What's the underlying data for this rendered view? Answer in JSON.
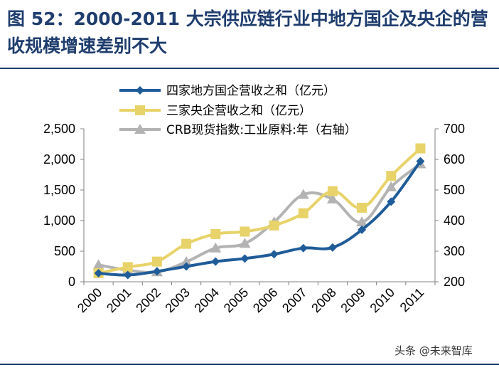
{
  "figure": {
    "title": "图 52：2000-2011 大宗供应链行业中地方国企及央企的营收规模增速差别不大",
    "watermark": "头条 @未来智库"
  },
  "chart_data": {
    "type": "line",
    "title": "",
    "categories": [
      "2000",
      "2001",
      "2002",
      "2003",
      "2004",
      "2005",
      "2006",
      "2007",
      "2008",
      "2009",
      "2010",
      "2011"
    ],
    "y_left": {
      "ylim": [
        0,
        2500
      ],
      "ticks": [
        0,
        500,
        1000,
        1500,
        2000,
        2500
      ],
      "tick_labels": [
        "0",
        "500",
        "1,000",
        "1,500",
        "2,000",
        "2,500"
      ]
    },
    "y_right": {
      "ylim": [
        200,
        700
      ],
      "ticks": [
        200,
        300,
        400,
        500,
        600,
        700
      ],
      "tick_labels": [
        "200",
        "300",
        "400",
        "500",
        "600",
        "700"
      ]
    },
    "grid": false,
    "legend_position": "top",
    "series": [
      {
        "name": "四家地方国企营收之和（亿元）",
        "axis": "left",
        "color": "#1f5c99",
        "marker": "diamond",
        "values": [
          140,
          110,
          170,
          250,
          330,
          380,
          450,
          550,
          560,
          850,
          1310,
          1970
        ]
      },
      {
        "name": "三家央企营收之和（亿元）",
        "axis": "left",
        "color": "#e8d36a",
        "marker": "square",
        "values": [
          140,
          240,
          330,
          620,
          780,
          820,
          920,
          1120,
          1480,
          1210,
          1730,
          2180
        ]
      },
      {
        "name": "CRB现货指数:工业原料:年（右轴）",
        "axis": "right",
        "color": "#b3b3b3",
        "marker": "triangle",
        "values": [
          255,
          238,
          232,
          265,
          310,
          325,
          395,
          485,
          470,
          395,
          510,
          585
        ]
      }
    ]
  }
}
